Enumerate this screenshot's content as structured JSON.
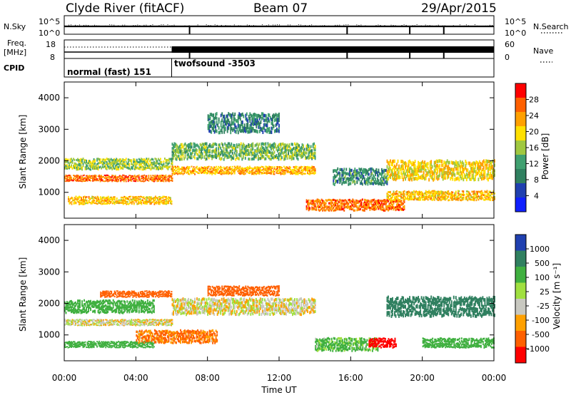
{
  "header": {
    "radar": "Clyde River (fitACF)",
    "beam": "Beam 07",
    "date": "29/Apr/2015"
  },
  "nsky_panel": {
    "left_label": "N.Sky",
    "right_label": "N.Search",
    "left_ticks": [
      "10^5",
      "10^0"
    ],
    "right_ticks": [
      "10^5",
      "10^0"
    ],
    "gap_hours": [
      7.0,
      15.8,
      19.3,
      21.2
    ]
  },
  "freq_panel": {
    "left_label_1": "Freq.",
    "left_label_2": "[MHz]",
    "right_label": "Nave",
    "left_ticks": [
      "18",
      "8"
    ],
    "right_ticks": [
      "60",
      "0"
    ]
  },
  "cpid_panel": {
    "label": "CPID",
    "modes": [
      {
        "start_hour": 0,
        "end_hour": 6,
        "text": "normal (fast) 151"
      },
      {
        "start_hour": 6,
        "end_hour": 24,
        "text": "twofsound -3503"
      }
    ]
  },
  "power_panel": {
    "ylabel": "Slant Range [km]",
    "yticks": [
      "1000",
      "2000",
      "3000",
      "4000"
    ],
    "cbar_label": "Power [dB]",
    "cbar_ticks": [
      "28",
      "24",
      "20",
      "16",
      "12",
      "8",
      "4"
    ],
    "cbar_colors": [
      "#ff0000",
      "#ff6000",
      "#ffa000",
      "#ffe000",
      "#a0c840",
      "#40a070",
      "#308060",
      "#2040b0",
      "#1020ff"
    ]
  },
  "velocity_panel": {
    "ylabel": "Slant Range [km]",
    "yticks": [
      "1000",
      "2000",
      "3000",
      "4000"
    ],
    "cbar_label": "Velocity [m s⁻¹]",
    "cbar_ticks": [
      "1000",
      "500",
      "100",
      "25",
      "-25",
      "-100",
      "-500",
      "-1000"
    ],
    "cbar_colors": [
      "#2040b0",
      "#308060",
      "#40b040",
      "#a0e040",
      "#c8c8c0",
      "#ffa000",
      "#ff6000",
      "#ff0000"
    ]
  },
  "x_axis": {
    "xlabel": "Time UT",
    "ticks": [
      "00:00",
      "04:00",
      "08:00",
      "12:00",
      "16:00",
      "20:00",
      "00:00"
    ]
  },
  "chart_data": {
    "type": "heatmap",
    "title": "Clyde River (fitACF)",
    "subtitle": "Beam 07 29/Apr/2015",
    "xlabel": "Time UT",
    "ylabel": "Slant Range [km]",
    "xlim_hours": [
      0,
      24
    ],
    "ylim_km": [
      180,
      4500
    ],
    "panels": [
      {
        "name": "Power [dB]",
        "colorbar_range": [
          0,
          32
        ],
        "echo_bands": [
          {
            "t0": 0.0,
            "t1": 6.0,
            "r_center": 1450,
            "r_width": 200,
            "value": 27
          },
          {
            "t0": 0.0,
            "t1": 6.0,
            "r_center": 1900,
            "r_width": 350,
            "value": 16
          },
          {
            "t0": 0.2,
            "t1": 6.0,
            "r_center": 750,
            "r_width": 250,
            "value": 22
          },
          {
            "t0": 6.0,
            "t1": 14.0,
            "r_center": 1700,
            "r_width": 250,
            "value": 23
          },
          {
            "t0": 6.0,
            "t1": 14.0,
            "r_center": 2300,
            "r_width": 500,
            "value": 14
          },
          {
            "t0": 8.0,
            "t1": 12.0,
            "r_center": 3200,
            "r_width": 600,
            "value": 9
          },
          {
            "t0": 13.5,
            "t1": 19.0,
            "r_center": 600,
            "r_width": 350,
            "value": 27
          },
          {
            "t0": 15.0,
            "t1": 18.0,
            "r_center": 1500,
            "r_width": 500,
            "value": 10
          },
          {
            "t0": 18.0,
            "t1": 24.0,
            "r_center": 1700,
            "r_width": 600,
            "value": 20
          },
          {
            "t0": 18.0,
            "t1": 24.0,
            "r_center": 900,
            "r_width": 300,
            "value": 22
          }
        ]
      },
      {
        "name": "Velocity [m s⁻¹]",
        "colorbar_range": [
          -1000,
          1000
        ],
        "echo_bands": [
          {
            "t0": 0.0,
            "t1": 5.0,
            "r_center": 1900,
            "r_width": 400,
            "value": 200
          },
          {
            "t0": 0.0,
            "t1": 6.0,
            "r_center": 1400,
            "r_width": 200,
            "value": 0
          },
          {
            "t0": 0.0,
            "t1": 5.0,
            "r_center": 700,
            "r_width": 200,
            "value": 150
          },
          {
            "t0": 2.0,
            "t1": 6.0,
            "r_center": 2300,
            "r_width": 200,
            "value": -150
          },
          {
            "t0": 4.0,
            "t1": 8.5,
            "r_center": 950,
            "r_width": 400,
            "value": -80
          },
          {
            "t0": 6.0,
            "t1": 14.0,
            "r_center": 1900,
            "r_width": 500,
            "value": 0
          },
          {
            "t0": 8.0,
            "t1": 12.0,
            "r_center": 2400,
            "r_width": 300,
            "value": -200
          },
          {
            "t0": 14.0,
            "t1": 17.5,
            "r_center": 700,
            "r_width": 400,
            "value": 80
          },
          {
            "t0": 17.0,
            "t1": 18.5,
            "r_center": 750,
            "r_width": 300,
            "value": -400
          },
          {
            "t0": 18.0,
            "t1": 24.0,
            "r_center": 1900,
            "r_width": 600,
            "value": 400
          },
          {
            "t0": 20.0,
            "t1": 24.0,
            "r_center": 750,
            "r_width": 300,
            "value": 200
          }
        ]
      }
    ],
    "frequency_mhz": {
      "before_6ut": 11,
      "after_6ut": [
        10,
        12
      ]
    },
    "grid": false
  }
}
